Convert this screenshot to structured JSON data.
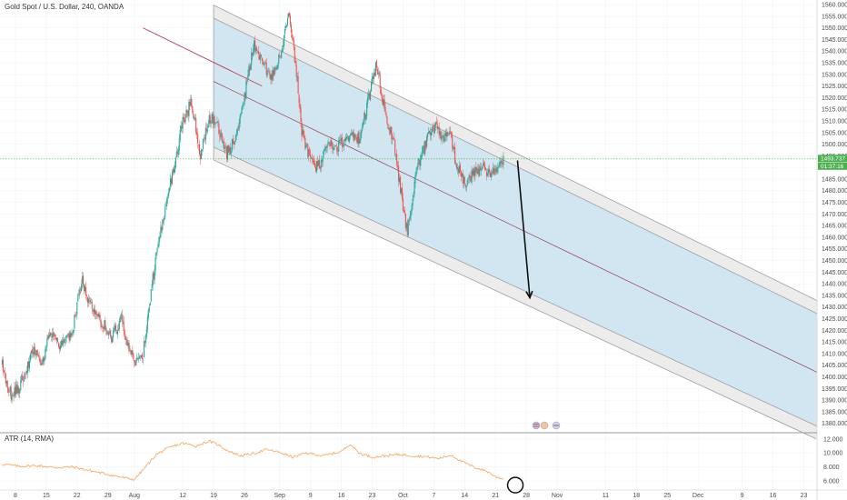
{
  "colors": {
    "up": "#26a69a",
    "down": "#ef5350",
    "channel_fill": "#c9e2ef",
    "channel_band": "#ececec",
    "channel_line": "#9e9e9e",
    "median": "#8e2b3f",
    "atr": "#f7a35c",
    "price_line": "#4caf50",
    "arrow": "#111111",
    "trendline": "#b2354a"
  },
  "chart_data": [
    {
      "type": "candlestick",
      "title": "Gold Spot / U.S. Dollar, 240, OANDA",
      "symbol": "Gold Spot / U.S. Dollar",
      "interval": "240",
      "source": "OANDA",
      "y_axis": {
        "ylim": [
          1376,
          1562
        ],
        "ticks": [
          "1560.000",
          "1555.000",
          "1550.000",
          "1545.000",
          "1540.000",
          "1535.000",
          "1530.000",
          "1525.000",
          "1520.000",
          "1515.000",
          "1510.000",
          "1505.000",
          "1500.000",
          "1495.000",
          "1490.000",
          "1485.000",
          "1480.000",
          "1475.000",
          "1470.000",
          "1465.000",
          "1460.000",
          "1455.000",
          "1450.000",
          "1445.000",
          "1440.000",
          "1435.000",
          "1430.000",
          "1425.000",
          "1420.000",
          "1415.000",
          "1410.000",
          "1405.000",
          "1400.000",
          "1395.000",
          "1390.000",
          "1385.000",
          "1380.000"
        ]
      },
      "x_axis": {
        "tick_labels": [
          "8",
          "15",
          "22",
          "29",
          "Aug",
          "12",
          "19",
          "26",
          "Sep",
          "9",
          "16",
          "23",
          "Oct",
          "7",
          "14",
          "21",
          "28",
          "Nov",
          "11",
          "18",
          "25",
          "Dec",
          "9",
          "16",
          "23"
        ],
        "tick_units": [
          8,
          15,
          22,
          29,
          35,
          46,
          53,
          60,
          68,
          75,
          82,
          89,
          96,
          103,
          110,
          117,
          124,
          131,
          142,
          149,
          156,
          163,
          173,
          180,
          187
        ],
        "xlim": [
          4.5,
          190
        ],
        "last_candle": 118.8
      },
      "price_tags": {
        "current": "1493.737",
        "countdown": "01:37:16",
        "current_value": 1493.7
      },
      "price_path": [
        [
          5,
          1405
        ],
        [
          7,
          1392
        ],
        [
          9,
          1396
        ],
        [
          12,
          1412
        ],
        [
          14,
          1406
        ],
        [
          16,
          1420
        ],
        [
          18,
          1414
        ],
        [
          21,
          1420
        ],
        [
          23,
          1442
        ],
        [
          25,
          1430
        ],
        [
          28,
          1422
        ],
        [
          30,
          1417
        ],
        [
          32,
          1425
        ],
        [
          35,
          1405
        ],
        [
          37,
          1410
        ],
        [
          39,
          1440
        ],
        [
          41,
          1462
        ],
        [
          44,
          1490
        ],
        [
          46,
          1510
        ],
        [
          48,
          1518
        ],
        [
          50,
          1495
        ],
        [
          52,
          1512
        ],
        [
          54,
          1507
        ],
        [
          56,
          1496
        ],
        [
          58,
          1502
        ],
        [
          60,
          1520
        ],
        [
          62,
          1543
        ],
        [
          64,
          1537
        ],
        [
          66,
          1528
        ],
        [
          68,
          1538
        ],
        [
          70,
          1555
        ],
        [
          71.5,
          1537
        ],
        [
          73,
          1505
        ],
        [
          75,
          1493
        ],
        [
          77,
          1490
        ],
        [
          79,
          1503
        ],
        [
          81,
          1498
        ],
        [
          84,
          1505
        ],
        [
          86,
          1502
        ],
        [
          88,
          1518
        ],
        [
          90,
          1535
        ],
        [
          92,
          1512
        ],
        [
          94,
          1500
        ],
        [
          95.5,
          1480
        ],
        [
          97,
          1462
        ],
        [
          99,
          1488
        ],
        [
          101,
          1500
        ],
        [
          103,
          1508
        ],
        [
          105,
          1504
        ],
        [
          107,
          1503
        ],
        [
          108,
          1492
        ],
        [
          110,
          1483
        ],
        [
          112,
          1488
        ],
        [
          114,
          1490
        ],
        [
          116,
          1487
        ],
        [
          117,
          1490
        ],
        [
          118.8,
          1494
        ]
      ],
      "channel": {
        "description": "descending regression channel",
        "start_unit": 53,
        "end_unit": 190,
        "upper_start": 1557,
        "upper_end": 1430,
        "mid_start": 1527,
        "mid_end": 1402,
        "lower_start": 1496,
        "lower_end": 1376,
        "band_width": 2.8
      },
      "trendline": {
        "x1": 37,
        "y1": 1550,
        "x2": 64,
        "y2": 1525
      },
      "projection_arrow": {
        "x1": 122,
        "y1": 1493,
        "x2": 124.8,
        "y2": 1434
      }
    },
    {
      "type": "line",
      "title": "ATR (14, RMA)",
      "indicator": "ATR",
      "params": "14, RMA",
      "ylim": [
        4.7,
        12.9
      ],
      "y_ticks": [
        "12.000",
        "10.000",
        "8.000",
        "6.000"
      ],
      "series": [
        {
          "values_path": [
            [
              5,
              8.4
            ],
            [
              9,
              8.1
            ],
            [
              13,
              8.2
            ],
            [
              17,
              7.9
            ],
            [
              21,
              8.0
            ],
            [
              24,
              7.6
            ],
            [
              27,
              7.2
            ],
            [
              30,
              6.8
            ],
            [
              33,
              6.4
            ],
            [
              35,
              6.2
            ],
            [
              37,
              7.6
            ],
            [
              40,
              9.8
            ],
            [
              43,
              10.8
            ],
            [
              46,
              11.4
            ],
            [
              49,
              11.0
            ],
            [
              52,
              11.7
            ],
            [
              54,
              11.2
            ],
            [
              56,
              10.4
            ],
            [
              59,
              9.6
            ],
            [
              62,
              9.9
            ],
            [
              65,
              10.5
            ],
            [
              68,
              10.1
            ],
            [
              71,
              9.4
            ],
            [
              74,
              10.0
            ],
            [
              78,
              9.6
            ],
            [
              82,
              10.2
            ],
            [
              84,
              11.3
            ],
            [
              86,
              10.0
            ],
            [
              89,
              9.4
            ],
            [
              92,
              9.6
            ],
            [
              95,
              9.8
            ],
            [
              98,
              9.6
            ],
            [
              101,
              9.5
            ],
            [
              104,
              9.2
            ],
            [
              107,
              9.7
            ],
            [
              109,
              8.9
            ],
            [
              112,
              8.0
            ],
            [
              115,
              7.4
            ],
            [
              117,
              6.6
            ],
            [
              118.8,
              6.3
            ]
          ]
        }
      ],
      "highlight_circle": {
        "x": 121.5,
        "y": 5.4
      }
    }
  ]
}
